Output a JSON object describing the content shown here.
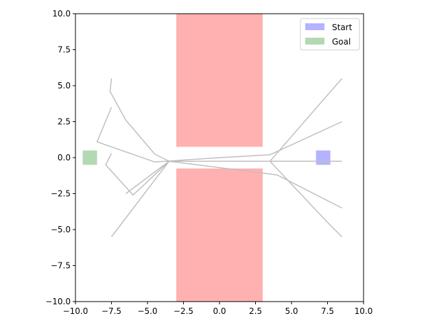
{
  "chart_data": {
    "type": "line",
    "xlim": [
      -10,
      10
    ],
    "ylim": [
      -10,
      10
    ],
    "xticks": [
      "−10.0",
      "−7.5",
      "−5.0",
      "−2.5",
      "0.0",
      "2.5",
      "5.0",
      "7.5",
      "10.0"
    ],
    "yticks": [
      "−10.0",
      "−7.5",
      "−5.0",
      "−2.5",
      "0.0",
      "2.5",
      "5.0",
      "7.5",
      "10.0"
    ],
    "xtick_values": [
      -10,
      -7.5,
      -5,
      -2.5,
      0,
      2.5,
      5,
      7.5,
      10
    ],
    "ytick_values": [
      -10,
      -7.5,
      -5,
      -2.5,
      0,
      2.5,
      5,
      7.5,
      10
    ],
    "grid": false,
    "legend_position": "top-right",
    "obstacles": [
      {
        "x": [
          -3,
          3
        ],
        "y": [
          0.75,
          10
        ],
        "color": "#ffb1b1"
      },
      {
        "x": [
          -3,
          3
        ],
        "y": [
          -10,
          -0.75
        ],
        "color": "#ffb1b1"
      }
    ],
    "start": {
      "label": "Start",
      "x": [
        6.7,
        7.7
      ],
      "y": [
        -0.5,
        0.5
      ],
      "color": "#b3b3ff"
    },
    "goal": {
      "label": "Goal",
      "x": [
        -9.5,
        -8.5
      ],
      "y": [
        -0.5,
        0.5
      ],
      "color": "#b3d9b3"
    },
    "path_color": "#bfbfbf",
    "series": [
      {
        "x": [
          8.5,
          4.0,
          -3.5,
          -4.5,
          -6.5,
          -7.6,
          -7.5
        ],
        "y": [
          -0.25,
          -0.25,
          -0.25,
          0.25,
          2.6,
          4.6,
          5.5
        ]
      },
      {
        "x": [
          8.5,
          3.5,
          0,
          -4.5,
          -8.5,
          -7.5
        ],
        "y": [
          2.5,
          0.2,
          0,
          -0.3,
          1.1,
          3.5
        ]
      },
      {
        "x": [
          8.5,
          3.5,
          -3.5,
          -7.5
        ],
        "y": [
          5.5,
          -0.25,
          -0.25,
          -5.5
        ]
      },
      {
        "x": [
          8.5,
          7.5,
          3.5,
          -3.5,
          -6.5
        ],
        "y": [
          -5.5,
          -4.5,
          -0.25,
          -0.25,
          -2.5
        ]
      },
      {
        "x": [
          8.5,
          4.0,
          -3.5,
          -6.0,
          -7.9,
          -7.5
        ],
        "y": [
          -3.5,
          -1.2,
          -0.25,
          -2.6,
          -0.5,
          0.3
        ]
      },
      {
        "x": [
          8.5,
          4.2,
          0,
          -3.5
        ],
        "y": [
          -0.25,
          -0.25,
          -0.25,
          -0.25
        ]
      }
    ]
  }
}
